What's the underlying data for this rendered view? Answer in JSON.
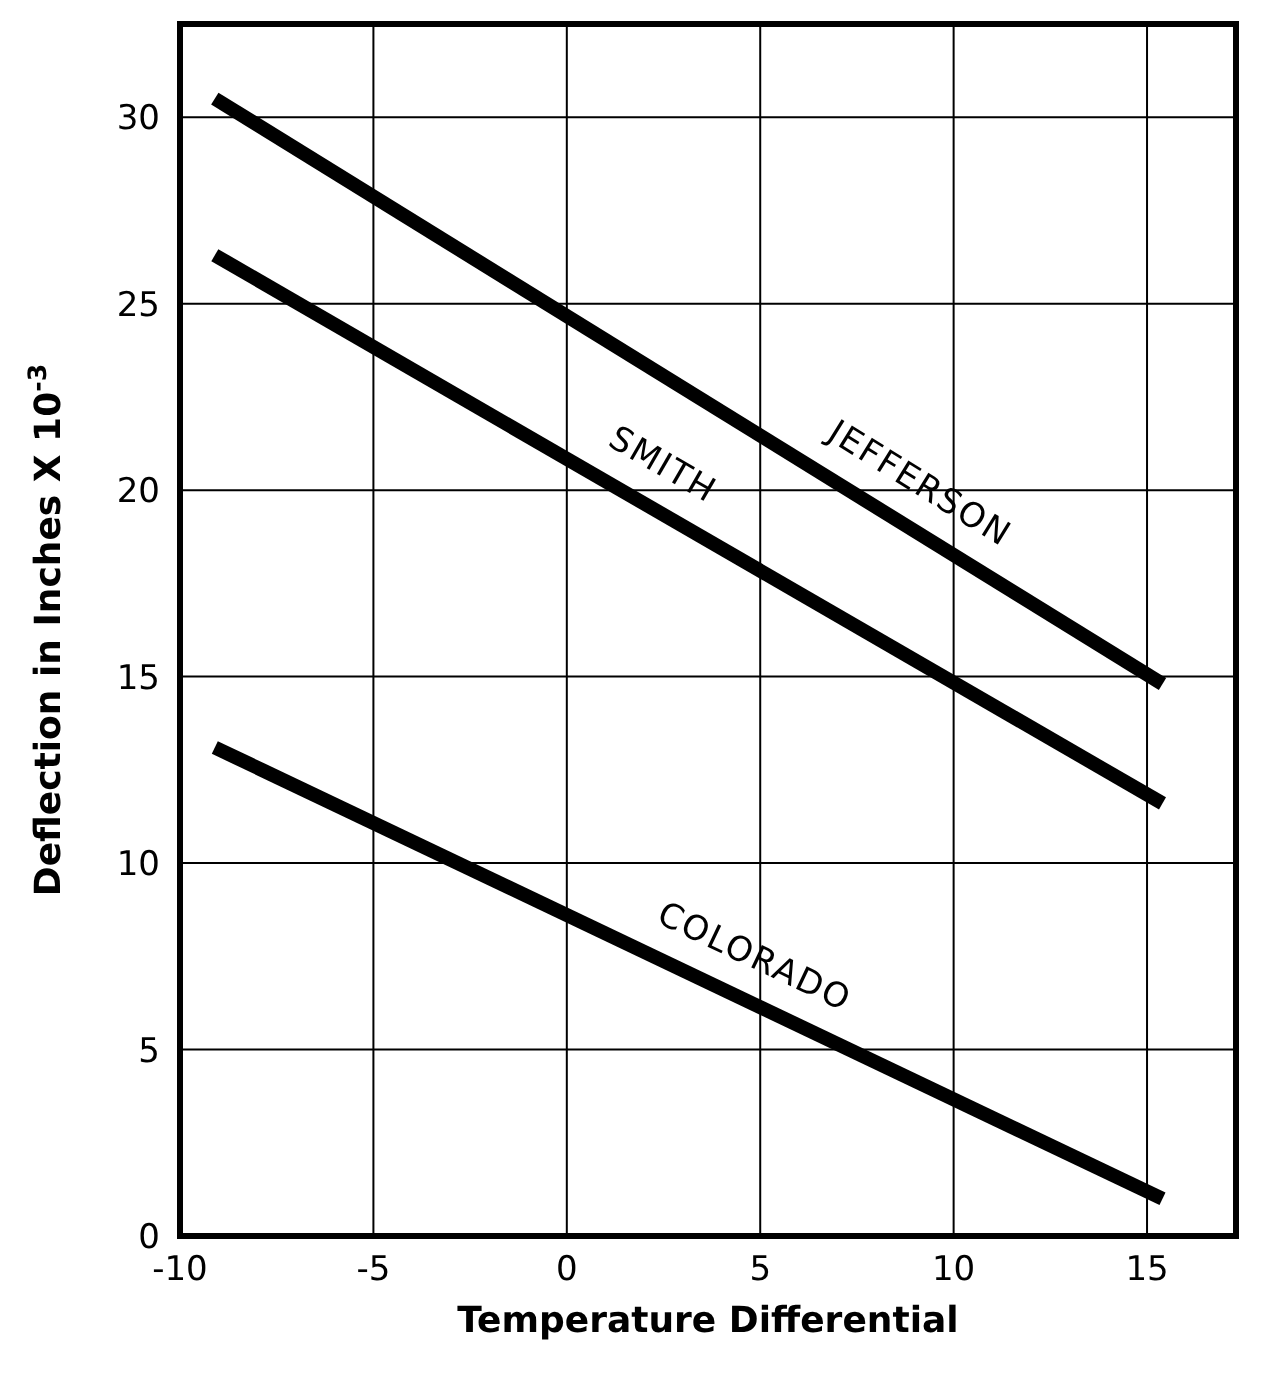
{
  "chart_data": {
    "type": "line",
    "xlabel": "Temperature Differential",
    "ylabel": "Deflection in Inches X 10$^{-3}$",
    "xlim": [
      -10,
      17.3
    ],
    "ylim": [
      0,
      32.5
    ],
    "xticks": [
      {
        "value": -10,
        "label": "-10"
      },
      {
        "value": -5,
        "label": "-5"
      },
      0,
      5,
      10,
      15
    ],
    "yticks": [
      0,
      5,
      10,
      15,
      20,
      25,
      30
    ],
    "grid": true,
    "line_style": "solid",
    "marker": "none",
    "x": [
      -9.1,
      15.4
    ],
    "series": [
      {
        "name": "JEFFERSON",
        "color": "#000000",
        "values": [
          30.5,
          14.8
        ]
      },
      {
        "name": "SMITH",
        "color": "#000000",
        "values": [
          26.3,
          11.6
        ]
      },
      {
        "name": "COLORADO",
        "color": "#000000",
        "values": [
          13.1,
          1
        ]
      }
    ]
  }
}
